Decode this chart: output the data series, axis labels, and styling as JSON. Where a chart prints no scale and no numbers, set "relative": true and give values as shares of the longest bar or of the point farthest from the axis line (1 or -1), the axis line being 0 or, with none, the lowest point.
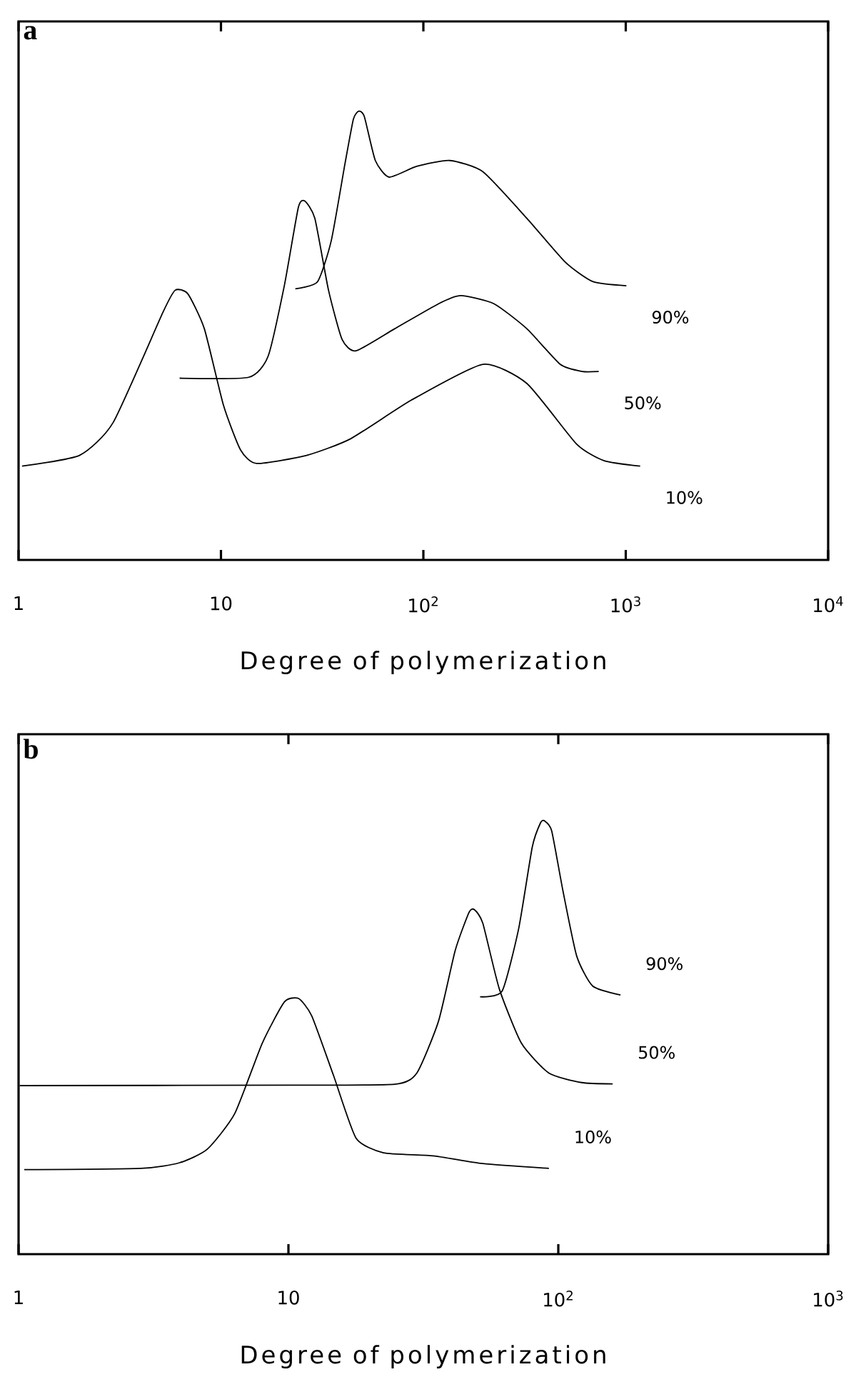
{
  "chart_data": [
    {
      "type": "line",
      "title": "a",
      "xlabel": "Degree of polymerization",
      "log": "x",
      "relative": true,
      "xlim": [
        1,
        10000
      ],
      "xticks": [
        1,
        10,
        {
          "value": 100,
          "label": "10$^{2}$"
        },
        {
          "value": 1000,
          "label": "10$^{3}$"
        },
        {
          "value": 10000,
          "label": "10$^{4}$"
        }
      ],
      "line_style": "solid",
      "marker": "none",
      "grid": false,
      "series": [
        {
          "name": "90%",
          "color": "#000000",
          "x": [
            23.3,
            30.0,
            35.1,
            41.0,
            45.1,
            48.0,
            51.1,
            57.9,
            67.7,
            92.7,
            135,
            197,
            325,
            504,
            690,
            1007
          ],
          "values": [
            0.604,
            0.62,
            0.712,
            0.883,
            0.982,
            1.0,
            0.988,
            0.89,
            0.853,
            0.877,
            0.89,
            0.865,
            0.761,
            0.663,
            0.62,
            0.611
          ]
        },
        {
          "name": "50%",
          "color": "#000000",
          "x": [
            6.25,
            13.7,
            17.1,
            20.6,
            24.1,
            25.9,
            29.1,
            34.0,
            39.7,
            46.5,
            72.1,
            119,
            153,
            223,
            325,
            474,
            609,
            735
          ],
          "values": [
            0.405,
            0.407,
            0.454,
            0.613,
            0.785,
            0.8,
            0.761,
            0.601,
            0.491,
            0.466,
            0.515,
            0.571,
            0.589,
            0.571,
            0.515,
            0.436,
            0.42,
            0.42
          ]
        },
        {
          "name": "10%",
          "color": "#000000",
          "x": [
            1.04,
            2.0,
            2.94,
            5.17,
            5.94,
            6.86,
            8.28,
            10.3,
            12.5,
            15.0,
            26.5,
            43.7,
            87.1,
            197,
            325,
            572,
            783,
            1178
          ],
          "values": [
            0.209,
            0.233,
            0.307,
            0.552,
            0.601,
            0.593,
            0.515,
            0.344,
            0.245,
            0.215,
            0.233,
            0.27,
            0.356,
            0.436,
            0.393,
            0.258,
            0.221,
            0.209
          ]
        }
      ]
    },
    {
      "type": "line",
      "title": "b",
      "xlabel": "Degree of polymerization",
      "log": "x",
      "relative": true,
      "xlim": [
        1,
        1000
      ],
      "xticks": [
        1,
        10,
        {
          "value": 100,
          "label": "10$^{2}$"
        },
        {
          "value": 1000,
          "label": "10$^{3}$"
        }
      ],
      "line_style": "solid",
      "marker": "none",
      "grid": false,
      "series": [
        {
          "name": "90%",
          "color": "#000000",
          "x": [
            51.3,
            61.9,
            71.3,
            80.1,
            86.0,
            88.9,
            94.5,
            104,
            117,
            134,
            170
          ],
          "values": [
            0.594,
            0.607,
            0.751,
            0.94,
            0.996,
            1.0,
            0.977,
            0.839,
            0.688,
            0.619,
            0.598
          ]
        },
        {
          "name": "50%",
          "color": "#000000",
          "x": [
            1.01,
            10,
            24.7,
            29.9,
            36.0,
            41.5,
            46.7,
            48.9,
            52.5,
            60.4,
            73.0,
            92.3,
            122,
            159
          ],
          "values": [
            0.389,
            0.39,
            0.392,
            0.418,
            0.538,
            0.701,
            0.789,
            0.795,
            0.764,
            0.613,
            0.487,
            0.418,
            0.396,
            0.393
          ]
        },
        {
          "name": "10%",
          "color": "#000000",
          "x": [
            1.05,
            2.84,
            3.95,
            5.0,
            6.32,
            8.0,
            9.66,
            10.9,
            12.2,
            14.7,
            17.8,
            22.5,
            34.4,
            52.5,
            92.3
          ],
          "values": [
            0.195,
            0.198,
            0.211,
            0.242,
            0.324,
            0.487,
            0.582,
            0.59,
            0.55,
            0.412,
            0.268,
            0.234,
            0.227,
            0.209,
            0.198
          ]
        }
      ]
    }
  ]
}
